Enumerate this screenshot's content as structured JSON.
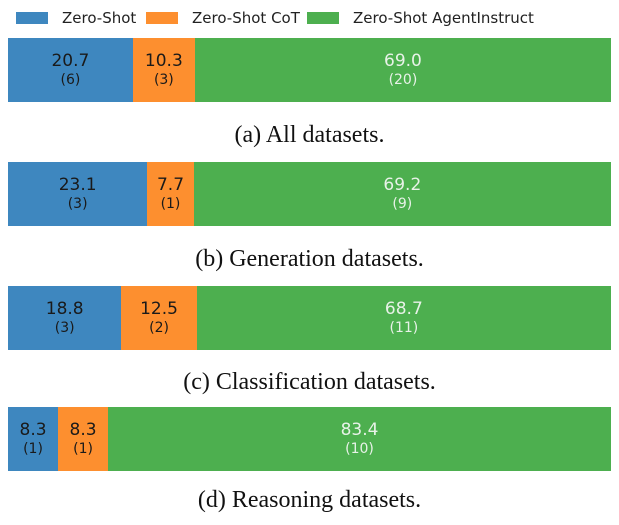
{
  "chart_data": {
    "type": "bar",
    "orientation": "horizontal-stacked",
    "legend": {
      "placement": "top",
      "entries": [
        "Zero-Shot",
        "Zero-Shot CoT",
        "Zero-Shot AgentInstruct"
      ]
    },
    "series_colors": [
      "#3e87bf",
      "#fd8f2f",
      "#4daf4f"
    ],
    "panels": [
      {
        "caption": "(a) All datasets.",
        "segments": [
          {
            "series": "Zero-Shot",
            "value": 20.7,
            "value_label": "20.7",
            "count_label": "(6)"
          },
          {
            "series": "Zero-Shot CoT",
            "value": 10.3,
            "value_label": "10.3",
            "count_label": "(3)"
          },
          {
            "series": "Zero-Shot AgentInstruct",
            "value": 69.0,
            "value_label": "69.0",
            "count_label": "(20)"
          }
        ]
      },
      {
        "caption": "(b) Generation datasets.",
        "segments": [
          {
            "series": "Zero-Shot",
            "value": 23.1,
            "value_label": "23.1",
            "count_label": "(3)"
          },
          {
            "series": "Zero-Shot CoT",
            "value": 7.7,
            "value_label": "7.7",
            "count_label": "(1)"
          },
          {
            "series": "Zero-Shot AgentInstruct",
            "value": 69.2,
            "value_label": "69.2",
            "count_label": "(9)"
          }
        ]
      },
      {
        "caption": "(c) Classification datasets.",
        "segments": [
          {
            "series": "Zero-Shot",
            "value": 18.8,
            "value_label": "18.8",
            "count_label": "(3)"
          },
          {
            "series": "Zero-Shot CoT",
            "value": 12.5,
            "value_label": "12.5",
            "count_label": "(2)"
          },
          {
            "series": "Zero-Shot AgentInstruct",
            "value": 68.7,
            "value_label": "68.7",
            "count_label": "(11)"
          }
        ]
      },
      {
        "caption": "(d) Reasoning datasets.",
        "segments": [
          {
            "series": "Zero-Shot",
            "value": 8.3,
            "value_label": "8.3",
            "count_label": "(1)"
          },
          {
            "series": "Zero-Shot CoT",
            "value": 8.3,
            "value_label": "8.3",
            "count_label": "(1)"
          },
          {
            "series": "Zero-Shot AgentInstruct",
            "value": 83.4,
            "value_label": "83.4",
            "count_label": "(10)"
          }
        ]
      }
    ],
    "xlim": [
      0,
      100
    ]
  },
  "text_colors": {
    "dark": "#1a1a1a",
    "light": "#e8f2e8"
  }
}
